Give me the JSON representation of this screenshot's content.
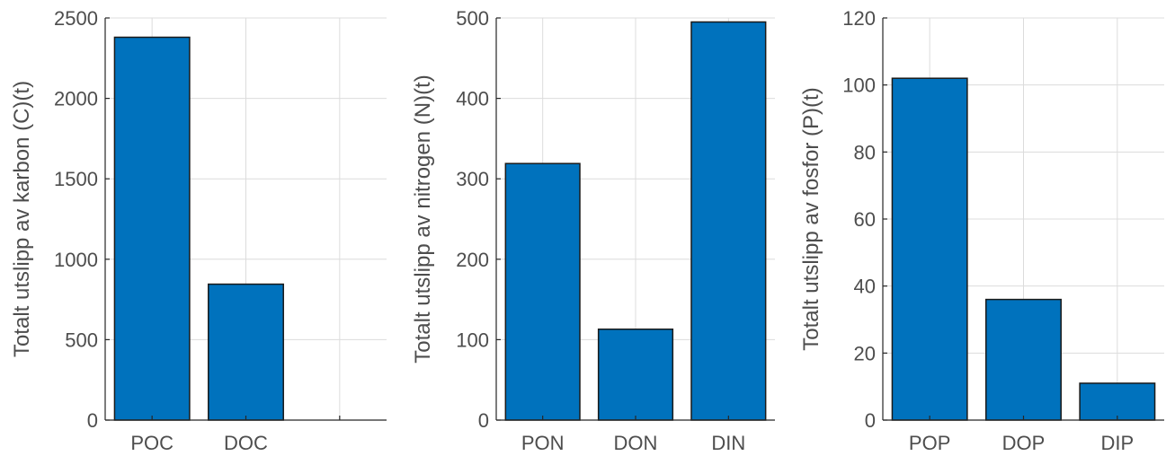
{
  "chart_data": [
    {
      "type": "bar",
      "categories": [
        "POC",
        "DOC",
        ""
      ],
      "values": [
        2380,
        845,
        null
      ],
      "title": "",
      "xlabel": "",
      "ylabel": "Totalt utslipp av karbon (C)(t)",
      "ylim": [
        0,
        2500
      ],
      "yticks": [
        0,
        500,
        1000,
        1500,
        2000,
        2500
      ],
      "grid": true,
      "bar_color": "#0072BD"
    },
    {
      "type": "bar",
      "categories": [
        "PON",
        "DON",
        "DIN"
      ],
      "values": [
        319,
        113,
        495
      ],
      "title": "",
      "xlabel": "",
      "ylabel": "Totalt utslipp av nitrogen (N)(t)",
      "ylim": [
        0,
        500
      ],
      "yticks": [
        0,
        100,
        200,
        300,
        400,
        500
      ],
      "grid": true,
      "bar_color": "#0072BD"
    },
    {
      "type": "bar",
      "categories": [
        "POP",
        "DOP",
        "DIP"
      ],
      "values": [
        102,
        36,
        11
      ],
      "title": "",
      "xlabel": "",
      "ylabel": "Totalt utslipp av fosfor (P)(t)",
      "ylim": [
        0,
        120
      ],
      "yticks": [
        0,
        20,
        40,
        60,
        80,
        100,
        120
      ],
      "grid": true,
      "bar_color": "#0072BD"
    }
  ]
}
